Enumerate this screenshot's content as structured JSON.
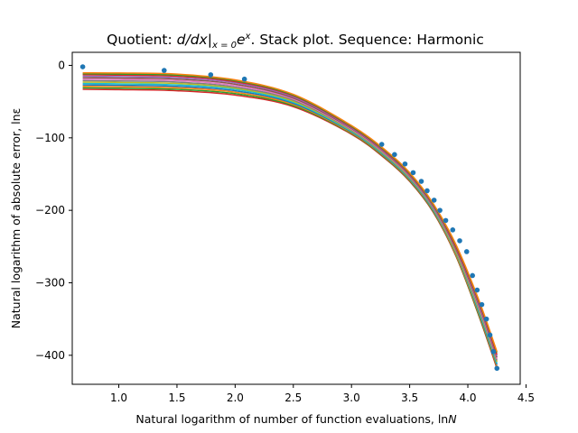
{
  "chart_data": {
    "type": "line",
    "title": {
      "prefix": "Quotient: ",
      "op": "d/dx",
      "bar": "|",
      "sub": "x = 0",
      "base": "e",
      "sup": "x",
      "suffix": ". Stack plot. Sequence: Harmonic"
    },
    "xlabel": "Natural logarithm of number of function evaluations, ln",
    "xlabel_var": "N",
    "ylabel": "Natural logarithm of absolute error, lnε",
    "xlim": [
      0.6,
      4.45
    ],
    "ylim": [
      -440,
      18
    ],
    "xticks": [
      1.0,
      1.5,
      2.0,
      2.5,
      3.0,
      3.5,
      4.0,
      4.5
    ],
    "xtick_labels": [
      "1.0",
      "1.5",
      "2.0",
      "2.5",
      "3.0",
      "3.5",
      "4.0",
      "4.5"
    ],
    "yticks": [
      0,
      -100,
      -200,
      -300,
      -400
    ],
    "ytick_labels": [
      "0",
      "−100",
      "−200",
      "−300",
      "−400"
    ],
    "grid": false,
    "legend": "none",
    "series": [
      {
        "color": "#ff7f0e",
        "x": [
          0.69,
          1.0,
          1.5,
          2.0,
          2.5,
          3.0,
          3.3,
          3.5,
          3.7,
          3.9,
          4.1,
          4.25
        ],
        "y": [
          -10.3,
          -10.5,
          -12,
          -20,
          -40,
          -83,
          -118,
          -148,
          -190,
          -248,
          -326,
          -395
        ]
      },
      {
        "color": "#2ca02c",
        "x": [
          0.69,
          1.0,
          1.5,
          2.0,
          2.5,
          3.0,
          3.3,
          3.5,
          3.7,
          3.9,
          4.1,
          4.25
        ],
        "y": [
          -11.5,
          -12,
          -13.5,
          -21,
          -41,
          -84,
          -119,
          -149,
          -191,
          -249,
          -327,
          -396
        ]
      },
      {
        "color": "#d62728",
        "x": [
          0.69,
          1.0,
          1.5,
          2.0,
          2.5,
          3.0,
          3.3,
          3.5,
          3.7,
          3.9,
          4.1,
          4.25
        ],
        "y": [
          -13,
          -13.5,
          -15,
          -22.5,
          -42,
          -85,
          -120,
          -150,
          -192,
          -251,
          -329,
          -399
        ]
      },
      {
        "color": "#9467bd",
        "x": [
          0.69,
          1.0,
          1.5,
          2.0,
          2.5,
          3.0,
          3.3,
          3.5,
          3.7,
          3.9,
          4.1,
          4.25
        ],
        "y": [
          -15,
          -15.5,
          -17,
          -24,
          -43.5,
          -86,
          -121,
          -151,
          -193,
          -252,
          -331,
          -401
        ]
      },
      {
        "color": "#8c564b",
        "x": [
          0.69,
          1.0,
          1.5,
          2.0,
          2.5,
          3.0,
          3.3,
          3.5,
          3.7,
          3.9,
          4.1,
          4.25
        ],
        "y": [
          -17,
          -17.5,
          -19,
          -26,
          -45,
          -87,
          -122,
          -152,
          -194,
          -254,
          -333,
          -403
        ]
      },
      {
        "color": "#e377c2",
        "x": [
          0.69,
          1.0,
          1.5,
          2.0,
          2.5,
          3.0,
          3.3,
          3.5,
          3.7,
          3.9,
          4.1,
          4.25
        ],
        "y": [
          -19,
          -19.5,
          -21,
          -28,
          -46.5,
          -88,
          -123,
          -153,
          -195,
          -255,
          -335,
          -405
        ]
      },
      {
        "color": "#7f7f7f",
        "x": [
          0.69,
          1.0,
          1.5,
          2.0,
          2.5,
          3.0,
          3.3,
          3.5,
          3.7,
          3.9,
          4.1,
          4.25
        ],
        "y": [
          -21,
          -21.5,
          -23,
          -30,
          -48,
          -89,
          -124,
          -154,
          -196,
          -256,
          -337,
          -407
        ]
      },
      {
        "color": "#bcbd22",
        "x": [
          0.69,
          1.0,
          1.5,
          2.0,
          2.5,
          3.0,
          3.3,
          3.5,
          3.7,
          3.9,
          4.1,
          4.25
        ],
        "y": [
          -23,
          -23.5,
          -25,
          -31.5,
          -49.5,
          -90,
          -125,
          -155,
          -197,
          -258,
          -339,
          -409
        ]
      },
      {
        "color": "#17becf",
        "x": [
          0.69,
          1.0,
          1.5,
          2.0,
          2.5,
          3.0,
          3.3,
          3.5,
          3.7,
          3.9,
          4.1,
          4.25
        ],
        "y": [
          -25,
          -25.5,
          -27,
          -33,
          -51,
          -91,
          -126,
          -156,
          -198,
          -259,
          -341,
          -411
        ]
      },
      {
        "color": "#1f77b4",
        "x": [
          0.69,
          1.0,
          1.5,
          2.0,
          2.5,
          3.0,
          3.3,
          3.5,
          3.7,
          3.9,
          4.1,
          4.25
        ],
        "y": [
          -27,
          -27.5,
          -29,
          -35,
          -52.5,
          -92,
          -127,
          -157,
          -199,
          -260,
          -343,
          -413
        ]
      },
      {
        "color": "#ff7f0e",
        "x": [
          0.69,
          1.0,
          1.5,
          2.0,
          2.5,
          3.0,
          3.3,
          3.5,
          3.7,
          3.9,
          4.1,
          4.25
        ],
        "y": [
          -29,
          -29.5,
          -31,
          -37,
          -54,
          -93,
          -128,
          -158,
          -200,
          -262,
          -345,
          -415
        ]
      },
      {
        "color": "#2ca02c",
        "x": [
          0.69,
          1.0,
          1.5,
          2.0,
          2.5,
          3.0,
          3.3,
          3.5,
          3.7,
          3.9,
          4.1,
          4.25
        ],
        "y": [
          -31,
          -31.5,
          -33,
          -39,
          -55.5,
          -94,
          -129,
          -159,
          -201,
          -263,
          -347,
          -416
        ]
      },
      {
        "color": "#d62728",
        "x": [
          0.69,
          1.0,
          1.5,
          2.0,
          2.5,
          3.0,
          3.3,
          3.5,
          3.7,
          3.9,
          4.1,
          4.25
        ],
        "y": [
          -33,
          -33.5,
          -35,
          -41,
          -57,
          -95,
          -130,
          -160,
          -202,
          -264,
          -348,
          -418
        ]
      }
    ],
    "scatter": {
      "color": "#1f77b4",
      "x": [
        0.69,
        1.39,
        1.79,
        2.08,
        3.26,
        3.37,
        3.46,
        3.53,
        3.6,
        3.65,
        3.71,
        3.76,
        3.81,
        3.87,
        3.93,
        3.99,
        4.04,
        4.08,
        4.12,
        4.16,
        4.19,
        4.22,
        4.25
      ],
      "y": [
        -2,
        -7,
        -13,
        -19,
        -109,
        -123,
        -136,
        -148,
        -160,
        -173,
        -186,
        -200,
        -214,
        -227,
        -242,
        -257,
        -290,
        -310,
        -330,
        -350,
        -372,
        -395,
        -418
      ]
    }
  }
}
